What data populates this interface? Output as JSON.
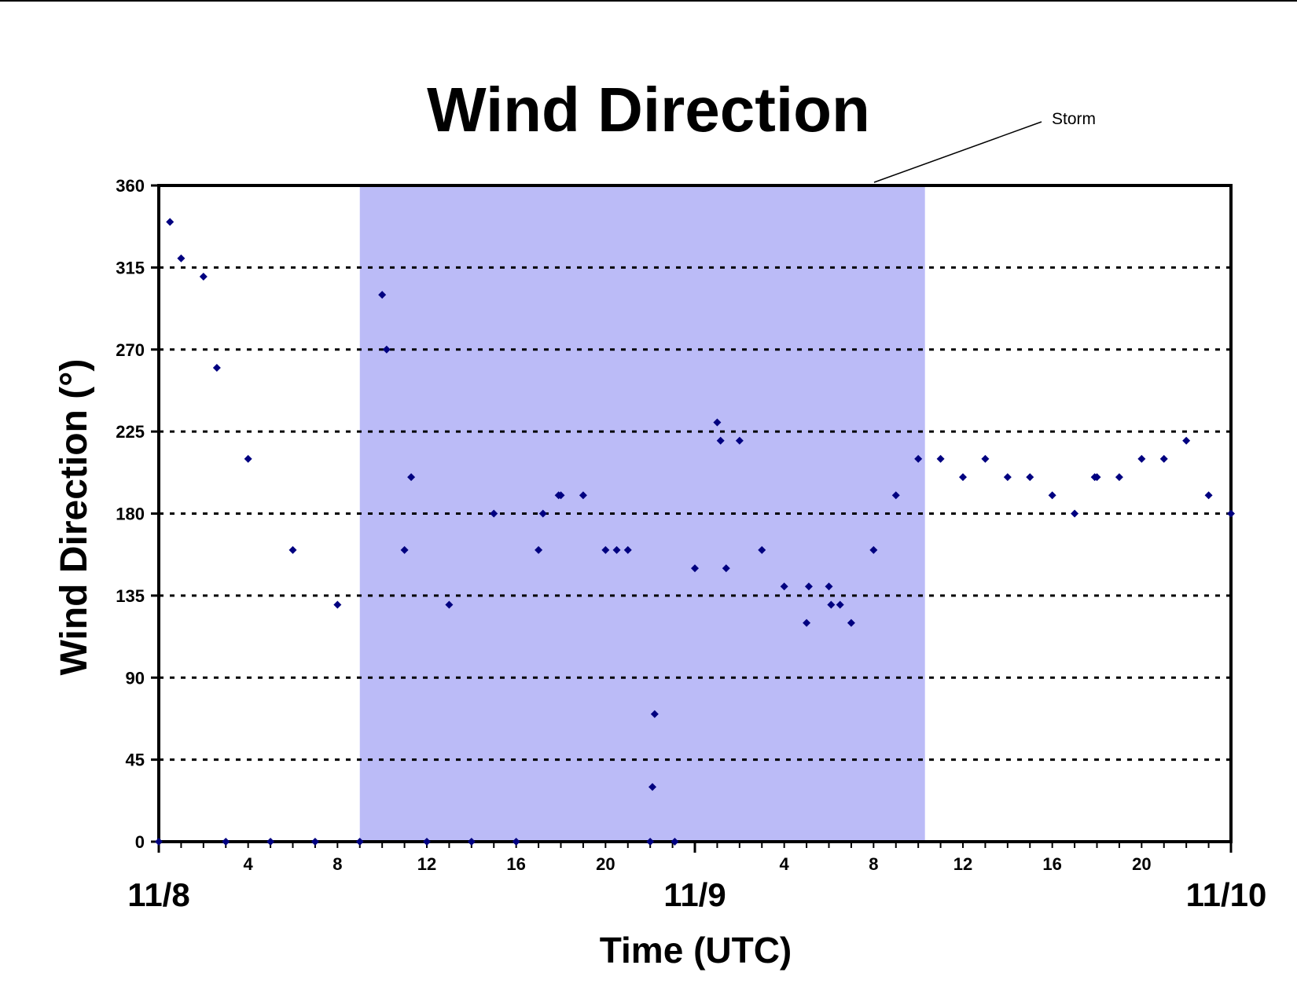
{
  "chart_data": {
    "type": "scatter",
    "title": "Wind Direction",
    "xlabel": "Time (UTC)",
    "ylabel": "Wind Direction (°)",
    "xlim": [
      0,
      48
    ],
    "ylim": [
      0,
      360
    ],
    "yticks": [
      0,
      45,
      90,
      135,
      180,
      225,
      270,
      315,
      360
    ],
    "grid": "horizontal dotted",
    "day_labels": [
      {
        "hour": 0,
        "label": "11/8"
      },
      {
        "hour": 24,
        "label": "11/9"
      },
      {
        "hour": 48,
        "label": "11/10"
      }
    ],
    "hour_ticks": [
      {
        "hour": 4,
        "label": "4"
      },
      {
        "hour": 8,
        "label": "8"
      },
      {
        "hour": 12,
        "label": "12"
      },
      {
        "hour": 16,
        "label": "16"
      },
      {
        "hour": 20,
        "label": "20"
      },
      {
        "hour": 28,
        "label": "4"
      },
      {
        "hour": 32,
        "label": "8"
      },
      {
        "hour": 36,
        "label": "12"
      },
      {
        "hour": 40,
        "label": "16"
      },
      {
        "hour": 44,
        "label": "20"
      }
    ],
    "shaded_region": {
      "label": "Storm",
      "x_start": 9.0,
      "x_end": 34.3,
      "color": "#bbbbf7"
    },
    "marker_color": "#000080",
    "x": [
      0.0,
      0.5,
      1.0,
      2.0,
      2.6,
      3.0,
      4.0,
      5.0,
      6.0,
      7.0,
      8.0,
      9.0,
      10.0,
      10.2,
      11.0,
      11.3,
      12.0,
      13.0,
      14.0,
      15.0,
      16.0,
      17.0,
      17.2,
      17.9,
      18.0,
      19.0,
      20.0,
      20.5,
      21.0,
      22.0,
      22.1,
      22.2,
      23.1,
      24.0,
      25.0,
      25.15,
      25.4,
      26.0,
      27.0,
      28.0,
      29.0,
      29.1,
      30.0,
      30.1,
      30.5,
      31.0,
      32.0,
      33.0,
      34.0,
      35.0,
      36.0,
      37.0,
      38.0,
      39.0,
      40.0,
      41.0,
      41.9,
      42.0,
      43.0,
      44.0,
      45.0,
      46.0,
      47.0,
      48.0
    ],
    "y": [
      0,
      340,
      320,
      310,
      260,
      0,
      210,
      0,
      160,
      0,
      130,
      0,
      300,
      270,
      160,
      200,
      0,
      130,
      0,
      180,
      0,
      160,
      180,
      190,
      190,
      190,
      160,
      160,
      160,
      0,
      30,
      70,
      0,
      150,
      230,
      220,
      150,
      220,
      160,
      140,
      120,
      140,
      140,
      130,
      130,
      120,
      160,
      190,
      210,
      210,
      200,
      210,
      200,
      200,
      190,
      180,
      200,
      200,
      200,
      210,
      210,
      220,
      190,
      180
    ]
  }
}
